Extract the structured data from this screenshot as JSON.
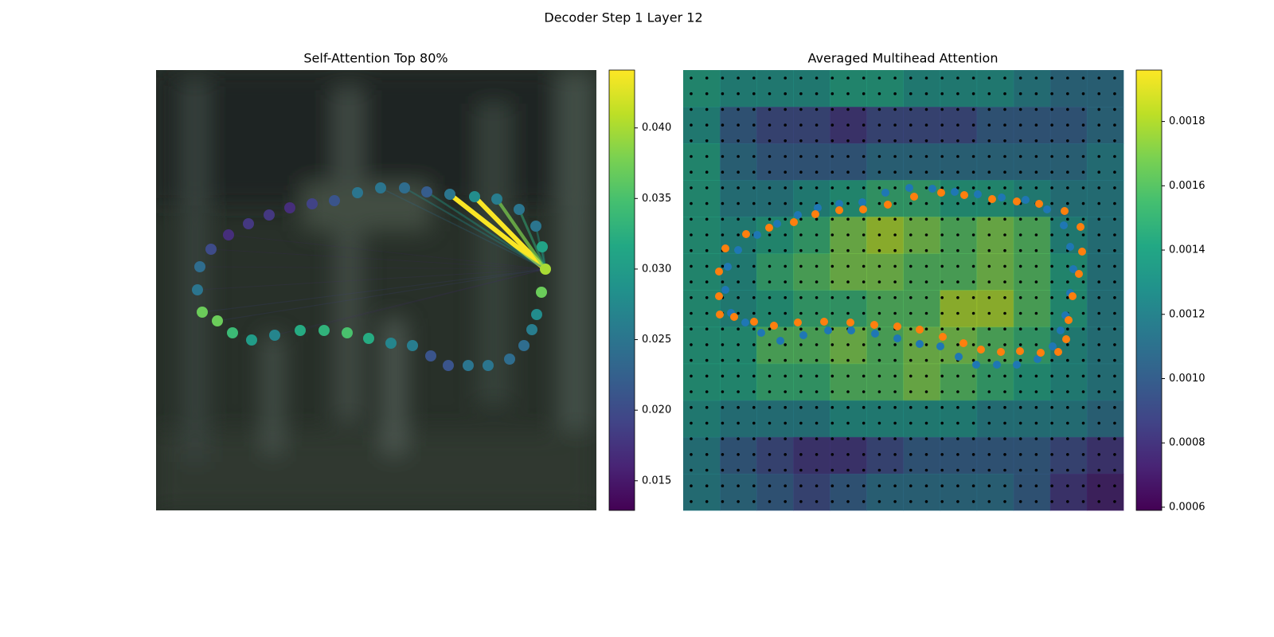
{
  "title": "Decoder Step 1 Layer 12",
  "chart_data": [
    {
      "type": "scatter",
      "title": "Self-Attention Top 80%",
      "xlim": [
        0,
        553
      ],
      "ylim": [
        553,
        0
      ],
      "x": [
        489,
        484,
        478,
        472,
        462,
        444,
        417,
        392,
        367,
        345,
        322,
        295,
        267,
        240,
        211,
        181,
        149,
        120,
        96,
        77,
        58,
        52,
        55,
        69,
        91,
        116,
        142,
        168,
        196,
        224,
        253,
        282,
        312,
        340,
        369,
        400,
        428,
        456,
        477,
        485
      ],
      "y": [
        250,
        279,
        307,
        326,
        346,
        363,
        371,
        371,
        371,
        359,
        346,
        343,
        337,
        330,
        327,
        327,
        333,
        339,
        330,
        315,
        304,
        276,
        247,
        225,
        207,
        193,
        182,
        173,
        168,
        164,
        154,
        148,
        148,
        153,
        156,
        159,
        162,
        175,
        196,
        222
      ],
      "values": [
        0.04,
        0.037,
        0.028,
        0.026,
        0.024,
        0.024,
        0.025,
        0.025,
        0.021,
        0.021,
        0.026,
        0.027,
        0.032,
        0.035,
        0.033,
        0.032,
        0.027,
        0.03,
        0.034,
        0.037,
        0.037,
        0.025,
        0.024,
        0.02,
        0.017,
        0.018,
        0.018,
        0.017,
        0.019,
        0.021,
        0.025,
        0.025,
        0.024,
        0.022,
        0.025,
        0.028,
        0.026,
        0.025,
        0.025,
        0.031
      ],
      "edges": [
        {
          "target": 34,
          "value": 0.044
        },
        {
          "target": 35,
          "value": 0.044
        },
        {
          "target": 36,
          "value": 0.038
        },
        {
          "target": 37,
          "value": 0.033
        },
        {
          "target": 33,
          "value": 0.03
        },
        {
          "target": 32,
          "value": 0.028
        },
        {
          "target": 38,
          "value": 0.03
        },
        {
          "target": 39,
          "value": 0.03
        },
        {
          "target": 31,
          "value": 0.024
        },
        {
          "target": 19,
          "value": 0.019
        },
        {
          "target": 20,
          "value": 0.019
        },
        {
          "target": 21,
          "value": 0.017
        },
        {
          "target": 22,
          "value": 0.016
        },
        {
          "target": 23,
          "value": 0.016
        },
        {
          "target": 24,
          "value": 0.016
        },
        {
          "target": 16,
          "value": 0.017
        },
        {
          "target": 15,
          "value": 0.016
        }
      ],
      "clim": [
        0.0129,
        0.0441
      ],
      "cticks": [
        0.015,
        {
          "value": 0.02,
          "label": "0.020"
        },
        0.025,
        {
          "value": 0.03,
          "label": "0.030"
        },
        0.035,
        {
          "value": 0.04,
          "label": "0.040"
        }
      ]
    },
    {
      "type": "heatmap",
      "title": "Averaged Multihead Attention",
      "xlim": [
        0,
        553
      ],
      "ylim": [
        553,
        0
      ],
      "z": [
        [
          0.0014,
          0.0013,
          0.0013,
          0.0013,
          0.0014,
          0.0014,
          0.0013,
          0.0013,
          0.0013,
          0.0012,
          0.0011,
          0.0011
        ],
        [
          0.0013,
          0.001,
          0.0009,
          0.0009,
          0.0008,
          0.0009,
          0.0009,
          0.0009,
          0.001,
          0.001,
          0.001,
          0.0011
        ],
        [
          0.0014,
          0.0011,
          0.001,
          0.001,
          0.001,
          0.0011,
          0.0011,
          0.0011,
          0.0011,
          0.0011,
          0.0011,
          0.0012
        ],
        [
          0.0014,
          0.0012,
          0.0012,
          0.0013,
          0.0014,
          0.0015,
          0.0015,
          0.0014,
          0.0014,
          0.0013,
          0.0012,
          0.0012
        ],
        [
          0.0014,
          0.0013,
          0.0014,
          0.0015,
          0.0017,
          0.0018,
          0.0017,
          0.0016,
          0.0017,
          0.0016,
          0.0013,
          0.0012
        ],
        [
          0.0014,
          0.0013,
          0.0015,
          0.0016,
          0.0017,
          0.0017,
          0.0016,
          0.0016,
          0.0017,
          0.0016,
          0.0014,
          0.0012
        ],
        [
          0.0014,
          0.0013,
          0.0014,
          0.0015,
          0.0015,
          0.0016,
          0.0016,
          0.0018,
          0.0018,
          0.0016,
          0.0014,
          0.0012
        ],
        [
          0.0014,
          0.0014,
          0.0016,
          0.0016,
          0.0017,
          0.0016,
          0.0017,
          0.0017,
          0.0016,
          0.0015,
          0.0013,
          0.0012
        ],
        [
          0.0014,
          0.0014,
          0.0015,
          0.0015,
          0.0016,
          0.0016,
          0.0017,
          0.0016,
          0.0015,
          0.0014,
          0.0013,
          0.0012
        ],
        [
          0.0013,
          0.0012,
          0.0012,
          0.0012,
          0.0013,
          0.0013,
          0.0013,
          0.0013,
          0.0012,
          0.0012,
          0.0012,
          0.0011
        ],
        [
          0.0012,
          0.001,
          0.0009,
          0.0008,
          0.0008,
          0.0009,
          0.001,
          0.001,
          0.001,
          0.001,
          0.0009,
          0.0008
        ],
        [
          0.0012,
          0.0011,
          0.001,
          0.0009,
          0.001,
          0.0011,
          0.0011,
          0.0011,
          0.0011,
          0.001,
          0.0008,
          0.0007
        ]
      ],
      "series": [
        {
          "color": "#1f77b4",
          "x": [
            53,
            56,
            69,
            93,
            118,
            144,
            169,
            196,
            225,
            254,
            284,
            313,
            341,
            370,
            400,
            430,
            457,
            478,
            486,
            490,
            486,
            480,
            474,
            464,
            445,
            419,
            394,
            368,
            346,
            323,
            297,
            269,
            241,
            211,
            182,
            151,
            122,
            98,
            78,
            60
          ],
          "y": [
            276,
            247,
            226,
            207,
            193,
            182,
            173,
            168,
            166,
            154,
            148,
            149,
            153,
            156,
            160,
            163,
            175,
            195,
            222,
            250,
            280,
            308,
            327,
            347,
            363,
            370,
            370,
            370,
            360,
            347,
            344,
            337,
            331,
            327,
            327,
            333,
            340,
            330,
            317,
            305
          ]
        },
        {
          "color": "#ff7f0e",
          "x": [
            45,
            45,
            53,
            79,
            108,
            139,
            166,
            196,
            226,
            257,
            290,
            324,
            353,
            388,
            419,
            447,
            479,
            499,
            501,
            497,
            489,
            484,
            481,
            471,
            449,
            423,
            399,
            374,
            352,
            326,
            297,
            269,
            240,
            210,
            177,
            144,
            114,
            89,
            64,
            46
          ],
          "y": [
            284,
            253,
            224,
            206,
            198,
            191,
            181,
            176,
            175,
            169,
            159,
            154,
            157,
            162,
            165,
            168,
            177,
            197,
            228,
            256,
            284,
            314,
            338,
            354,
            355,
            353,
            354,
            351,
            343,
            335,
            326,
            322,
            320,
            317,
            316,
            317,
            321,
            316,
            310,
            307
          ]
        }
      ],
      "clim": [
        0.00059,
        0.00196
      ],
      "cticks": [
        0.0006,
        0.0008,
        {
          "value": 0.001,
          "label": "0.0010"
        },
        0.0012,
        0.0014,
        0.0016,
        0.0018
      ]
    }
  ]
}
